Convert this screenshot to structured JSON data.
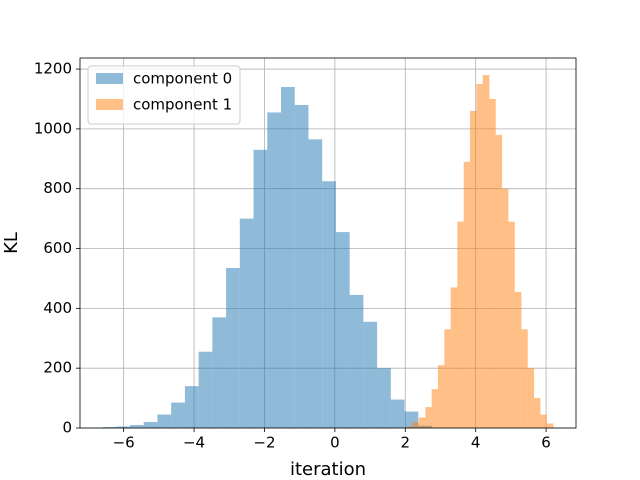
{
  "chart_data": {
    "type": "histogram",
    "x_label": "iteration",
    "y_label": "KL",
    "xlim": [
      -7.24,
      6.85
    ],
    "ylim": [
      0,
      1237
    ],
    "xticks": [
      {
        "value": -6,
        "label": "−6"
      },
      {
        "value": -4,
        "label": "−4"
      },
      {
        "value": -2,
        "label": "−2"
      },
      0,
      2,
      4,
      6
    ],
    "yticks": [
      0,
      200,
      400,
      600,
      800,
      1000,
      1200
    ],
    "grid": true,
    "legend": "upper-left",
    "opacity": 0.5,
    "series": [
      {
        "name": "component 0",
        "color": "#1f77b4",
        "bins": [
          -6.6,
          -6.21,
          -5.82,
          -5.43,
          -5.04,
          -4.65,
          -4.26,
          -3.87,
          -3.48,
          -3.09,
          -2.7,
          -2.31,
          -1.92,
          -1.53,
          -1.14,
          -0.75,
          -0.36,
          0.03,
          0.42,
          0.81,
          1.2,
          1.59,
          1.98,
          2.37,
          2.76
        ],
        "values": [
          3,
          5,
          10,
          20,
          45,
          85,
          140,
          255,
          370,
          535,
          700,
          930,
          1055,
          1140,
          1080,
          965,
          825,
          655,
          445,
          355,
          200,
          95,
          55,
          8
        ]
      },
      {
        "name": "component 1",
        "color": "#ff7f0e",
        "bins": [
          2.02,
          2.2,
          2.38,
          2.57,
          2.75,
          2.93,
          3.11,
          3.29,
          3.48,
          3.66,
          3.84,
          4.02,
          4.2,
          4.39,
          4.57,
          4.75,
          4.93,
          5.11,
          5.3,
          5.48,
          5.66,
          5.84,
          6.02,
          6.21
        ],
        "values": [
          5,
          20,
          35,
          70,
          130,
          210,
          330,
          470,
          690,
          890,
          1060,
          1150,
          1180,
          1100,
          980,
          800,
          690,
          455,
          330,
          200,
          100,
          45,
          15
        ]
      }
    ]
  }
}
